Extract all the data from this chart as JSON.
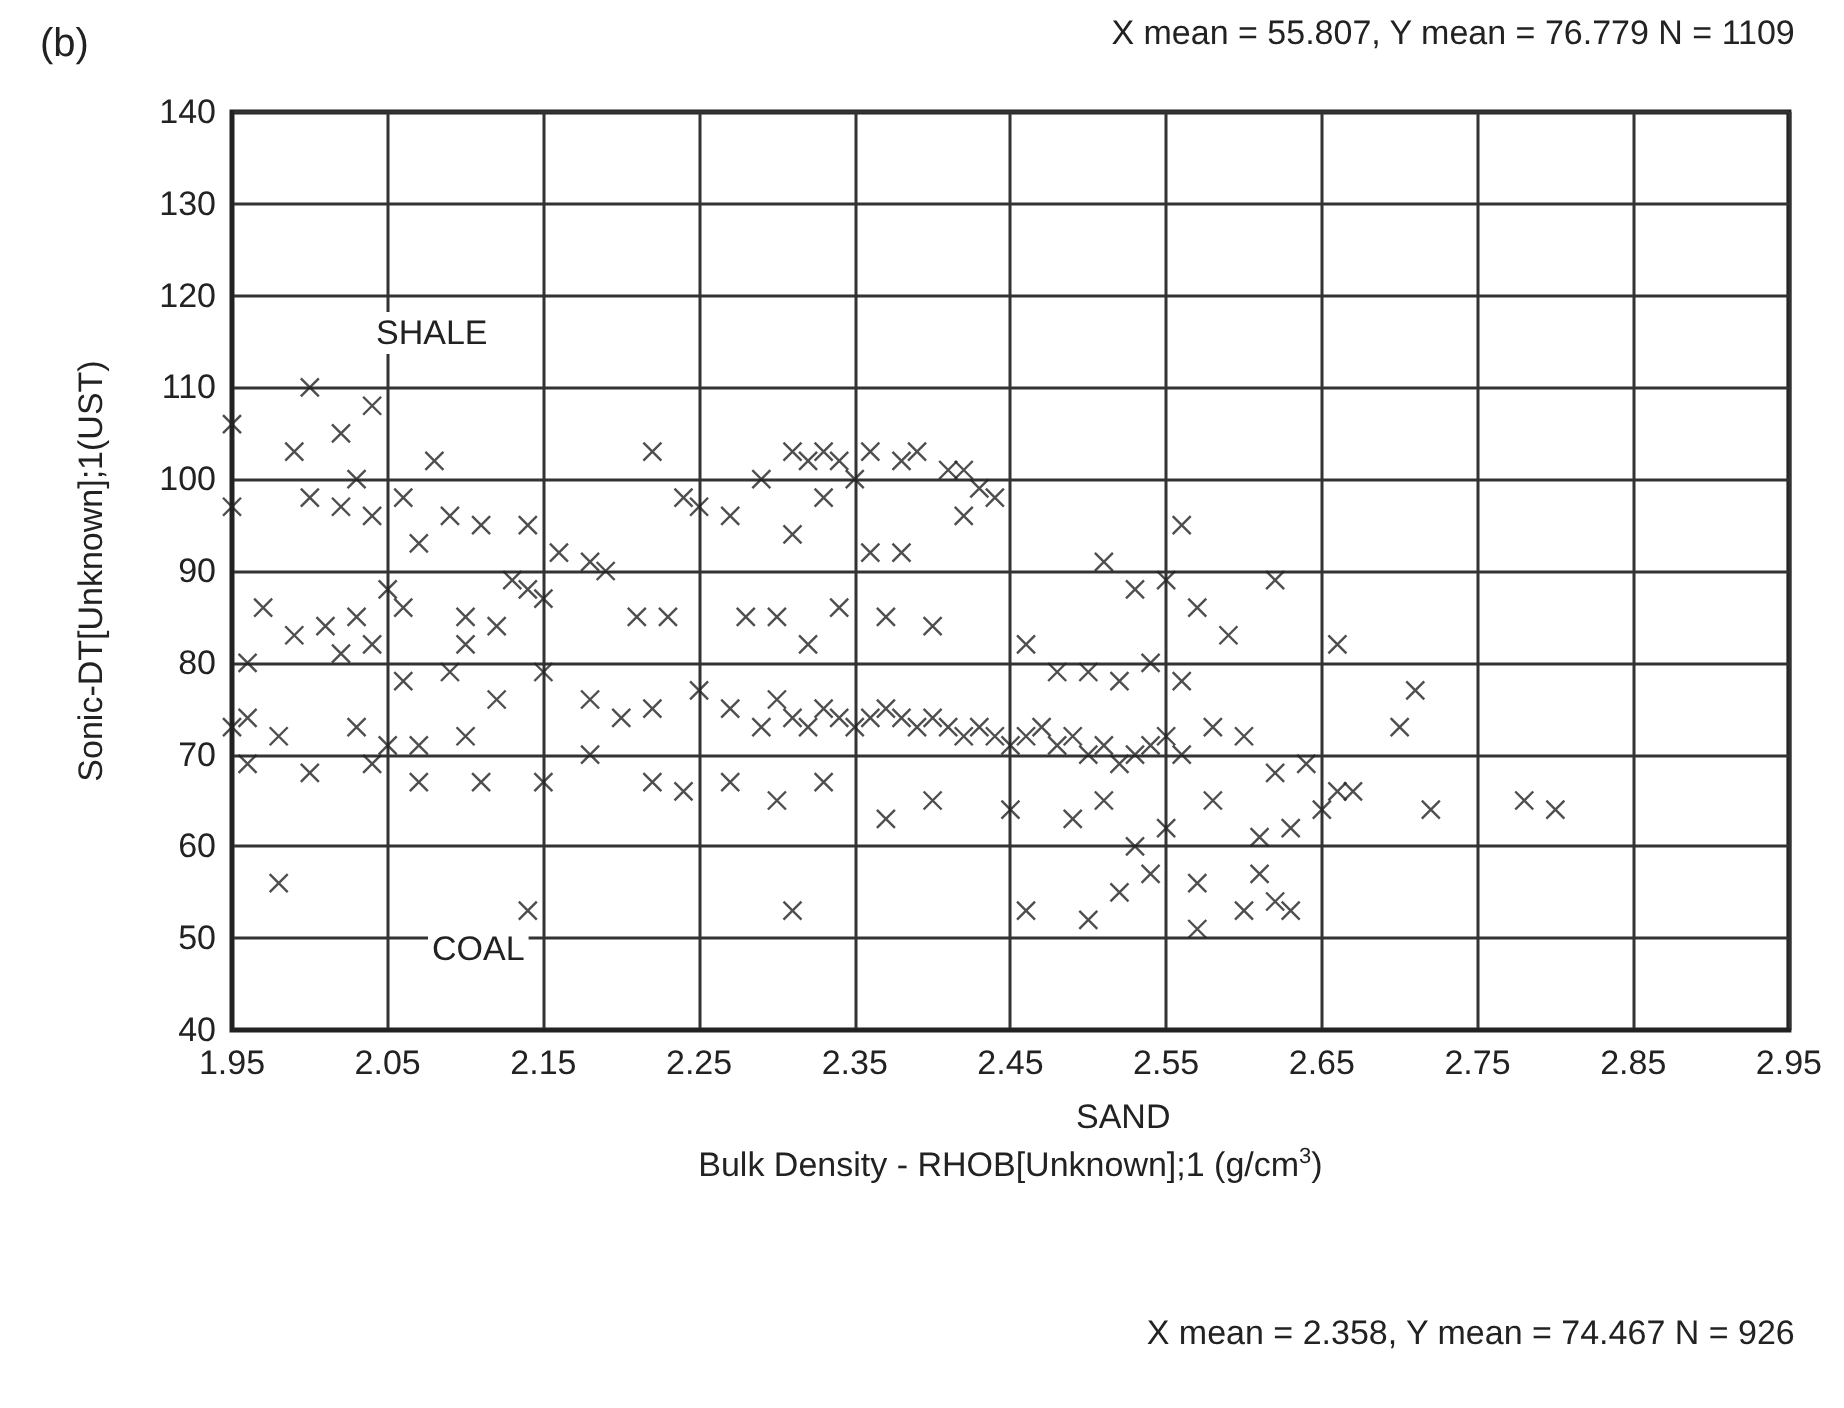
{
  "chart_data": {
    "type": "scatter",
    "xlabel": "Bulk Density - RHOB[Unknown];1 (g/cm$^{3}$)",
    "ylabel": "Sonic-DT[Unknown];1(UST)",
    "annotations": [
      "(b)",
      "X mean = 55.807, Y mean = 76.779 N = 1109",
      "X mean = 2.358, Y mean = 74.467 N = 926",
      "SHALE",
      "COAL",
      "SAND"
    ],
    "xlim": [
      1.95,
      2.95
    ],
    "xticks": [
      1.95,
      2.05,
      2.15,
      2.25,
      2.35,
      2.45,
      2.55,
      2.65,
      2.75,
      2.85,
      2.95
    ],
    "ylim": [
      40,
      140
    ],
    "yticks": [
      40,
      50,
      60,
      70,
      80,
      90,
      100,
      110,
      120,
      130,
      140
    ],
    "grid": true,
    "marker": "cross",
    "color": "#222222",
    "x": [
      1.95,
      1.95,
      1.99,
      2.0,
      2.02,
      2.03,
      2.04,
      2.02,
      2.04,
      2.0,
      2.06,
      2.08,
      2.07,
      2.09,
      2.11,
      2.14,
      2.13,
      2.16,
      2.18,
      2.19,
      2.21,
      2.22,
      2.24,
      2.25,
      2.27,
      2.29,
      2.31,
      2.32,
      2.33,
      2.34,
      2.35,
      2.36,
      2.38,
      2.39,
      2.41,
      2.42,
      2.43,
      2.44,
      2.42,
      2.31,
      2.33,
      2.36,
      2.38,
      2.56,
      2.59,
      2.62,
      2.57,
      2.51,
      2.53,
      2.55,
      2.66,
      1.97,
      1.99,
      2.01,
      2.03,
      2.05,
      2.02,
      2.04,
      2.06,
      2.1,
      2.12,
      2.14,
      2.15,
      2.1,
      1.96,
      2.06,
      2.09,
      2.23,
      2.28,
      2.3,
      2.32,
      2.34,
      2.37,
      2.4,
      2.46,
      1.96,
      1.95,
      1.98,
      2.03,
      2.05,
      2.07,
      2.1,
      2.12,
      2.15,
      2.18,
      2.2,
      2.22,
      2.25,
      2.27,
      2.29,
      2.3,
      2.31,
      2.32,
      2.33,
      2.34,
      2.35,
      2.36,
      2.37,
      2.38,
      2.39,
      2.4,
      2.41,
      2.42,
      2.43,
      2.44,
      2.45,
      2.46,
      2.47,
      2.48,
      2.49,
      2.5,
      2.51,
      2.52,
      2.53,
      2.54,
      2.55,
      2.56,
      2.58,
      2.6,
      2.62,
      2.64,
      2.66,
      2.52,
      2.54,
      2.5,
      2.56,
      2.48,
      1.96,
      2.0,
      2.04,
      2.07,
      2.11,
      2.15,
      2.18,
      2.22,
      2.24,
      2.27,
      2.3,
      2.33,
      2.37,
      2.4,
      2.45,
      2.49,
      2.51,
      2.53,
      2.55,
      2.58,
      2.61,
      2.63,
      2.65,
      2.67,
      2.72,
      2.7,
      2.71,
      2.78,
      2.8,
      1.98,
      2.14,
      2.31,
      2.46,
      2.5,
      2.52,
      2.54,
      2.57,
      2.57,
      2.6,
      2.62,
      2.63,
      2.61
    ],
    "values": [
      106,
      97,
      103,
      110,
      105,
      100,
      108,
      97,
      96,
      98,
      98,
      102,
      93,
      96,
      95,
      95,
      89,
      92,
      91,
      90,
      85,
      103,
      98,
      97,
      96,
      100,
      103,
      102,
      103,
      102,
      100,
      103,
      102,
      103,
      101,
      101,
      99,
      98,
      96,
      94,
      98,
      92,
      92,
      95,
      83,
      89,
      86,
      91,
      88,
      89,
      82,
      86,
      83,
      84,
      85,
      88,
      81,
      82,
      86,
      85,
      84,
      88,
      87,
      82,
      80,
      78,
      79,
      85,
      85,
      85,
      82,
      86,
      85,
      84,
      82,
      74,
      73,
      72,
      73,
      71,
      71,
      72,
      76,
      79,
      76,
      74,
      75,
      77,
      75,
      73,
      76,
      74,
      73,
      75,
      74,
      73,
      74,
      75,
      74,
      73,
      74,
      73,
      72,
      73,
      72,
      71,
      72,
      73,
      71,
      72,
      70,
      71,
      69,
      70,
      71,
      72,
      70,
      73,
      72,
      68,
      69,
      66,
      78,
      80,
      79,
      78,
      79,
      69,
      68,
      69,
      67,
      67,
      67,
      70,
      67,
      66,
      67,
      65,
      67,
      63,
      65,
      64,
      63,
      65,
      60,
      62,
      65,
      61,
      62,
      64,
      66,
      64,
      73,
      77,
      65,
      64,
      56,
      53,
      53,
      53,
      52,
      55,
      57,
      56,
      51,
      53,
      54,
      53,
      57
    ]
  }
}
